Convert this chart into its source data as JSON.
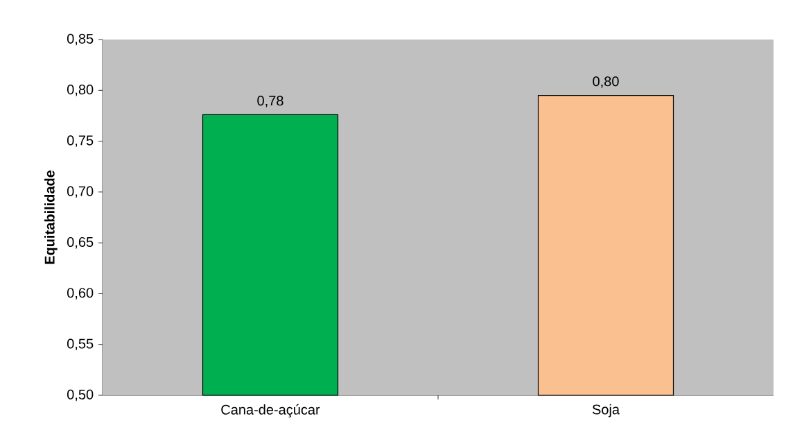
{
  "chart_data": {
    "type": "bar",
    "ylabel": "Equitabilidade",
    "categories": [
      "Cana-de-açúcar",
      "Soja"
    ],
    "values": [
      0.776,
      0.795
    ],
    "colors": [
      "#00b050",
      "#fac090"
    ],
    "value_labels": [
      "0,78",
      "0,80"
    ],
    "ylim": [
      0.5,
      0.85
    ],
    "yticks": [
      {
        "value": 0.5,
        "label": "0,50"
      },
      {
        "value": 0.55,
        "label": "0,55"
      },
      {
        "value": 0.6,
        "label": "0,60"
      },
      {
        "value": 0.65,
        "label": "0,65"
      },
      {
        "value": 0.7,
        "label": "0,70"
      },
      {
        "value": 0.75,
        "label": "0,75"
      },
      {
        "value": 0.8,
        "label": "0,80"
      },
      {
        "value": 0.85,
        "label": "0,85"
      }
    ]
  }
}
